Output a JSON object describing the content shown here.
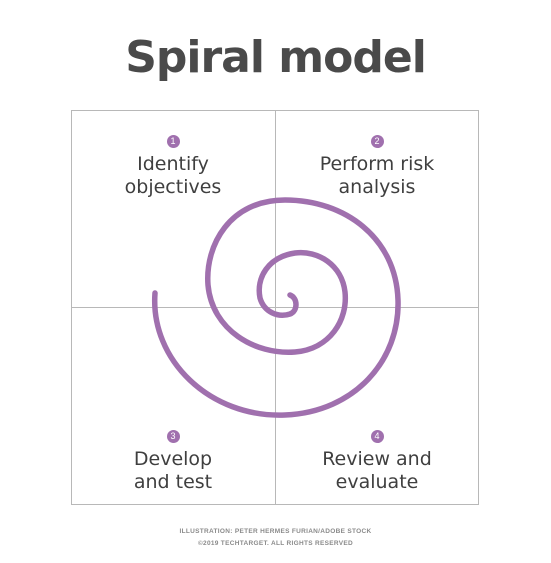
{
  "title": "Spiral model",
  "quadrants": [
    {
      "number": "1",
      "label": "Identify\nobjectives"
    },
    {
      "number": "2",
      "label": "Perform risk\nanalysis"
    },
    {
      "number": "3",
      "label": "Develop\nand test"
    },
    {
      "number": "4",
      "label": "Review and\nevaluate"
    }
  ],
  "credits": {
    "line1": "ILLUSTRATION: PETER HERMES FURIAN/ADOBE STOCK",
    "line2": "©2019 TECHTARGET. ALL RIGHTS RESERVED"
  },
  "colors": {
    "spiral": "#a070ae",
    "badge": "#a070ae",
    "title": "#4a4a4a",
    "grid": "#b8b8b8"
  }
}
